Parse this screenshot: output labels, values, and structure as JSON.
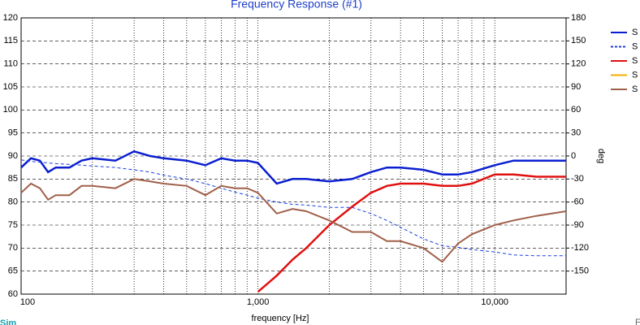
{
  "chart_data": {
    "type": "line",
    "title": "Frequency Response (#1)",
    "x_label": "frequency [Hz]",
    "y2_label": "deg",
    "annotation": "Sim",
    "corner_text": "F",
    "log_x": true,
    "grid": true,
    "legend": "right",
    "x": [
      100,
      110,
      120,
      130,
      140,
      160,
      180,
      200,
      250,
      300,
      350,
      400,
      500,
      600,
      700,
      800,
      900,
      1000,
      1200,
      1400,
      1600,
      2000,
      2500,
      3000,
      3500,
      4000,
      5000,
      6000,
      7000,
      8000,
      10000,
      12000,
      15000,
      20000
    ],
    "xlim": [
      100,
      20000
    ],
    "xticks": [
      100,
      {
        "value": 1000,
        "label": "1,000"
      },
      {
        "value": 10000,
        "label": "10,000"
      }
    ],
    "xminor": [
      200,
      300,
      400,
      500,
      600,
      700,
      800,
      900,
      2000,
      3000,
      4000,
      5000,
      6000,
      7000,
      8000,
      9000
    ],
    "ylim": [
      60,
      120
    ],
    "yticks": [
      60,
      65,
      70,
      75,
      80,
      85,
      90,
      95,
      100,
      105,
      110,
      115,
      120
    ],
    "y2lim": [
      -180,
      180
    ],
    "y2ticks": [
      -150,
      -120,
      -90,
      -60,
      -30,
      0,
      30,
      60,
      90,
      120,
      150,
      180
    ],
    "series": [
      {
        "name": "S",
        "color": "#0a1fd0",
        "width": 2.5,
        "values": [
          87.5,
          89.5,
          89,
          86.5,
          87.5,
          87.5,
          89,
          89.5,
          89,
          91,
          90,
          89.5,
          89,
          88,
          89.5,
          89,
          89,
          88.5,
          84,
          85,
          85,
          84.5,
          85,
          86.5,
          87.5,
          87.5,
          87,
          86,
          86,
          86.5,
          88,
          89,
          89,
          89
        ]
      },
      {
        "name": "S",
        "color": "#1a3ee0",
        "width": 1,
        "dashed": true,
        "axis": "y2",
        "values": [
          -5,
          -7,
          -8,
          -9,
          -10,
          -11,
          -12,
          -13,
          -15,
          -18,
          -21,
          -25,
          -30,
          -36,
          -42,
          -47,
          -51,
          -55,
          -60,
          -63,
          -64,
          -67,
          -67,
          -75,
          -84,
          -93,
          -108,
          -117,
          -119,
          -122,
          -125,
          -129,
          -130,
          -130
        ]
      },
      {
        "name": "S",
        "color": "#e01010",
        "width": 2.5,
        "values": [
          null,
          null,
          null,
          null,
          null,
          null,
          null,
          null,
          null,
          null,
          null,
          null,
          null,
          null,
          null,
          null,
          null,
          60.5,
          64,
          67.5,
          70,
          75,
          79,
          82,
          83.5,
          84,
          84,
          83.5,
          83.5,
          84,
          86,
          86,
          85.5,
          85.5
        ]
      },
      {
        "name": "S",
        "color": "#f0b000",
        "width": 2,
        "values": [
          null,
          null,
          null,
          null,
          null,
          null,
          null,
          null,
          null,
          null,
          null,
          null,
          null,
          null,
          null,
          null,
          null,
          null,
          null,
          null,
          null,
          null,
          null,
          null,
          null,
          null,
          null,
          null,
          null,
          null,
          null,
          null,
          null,
          null
        ]
      },
      {
        "name": "S",
        "color": "#a0604a",
        "width": 2,
        "values": [
          82,
          84,
          83,
          80.5,
          81.5,
          81.5,
          83.5,
          83.5,
          83,
          85,
          84.5,
          84,
          83.5,
          81.5,
          83.5,
          83,
          83,
          82,
          77.5,
          78.5,
          78,
          76,
          73.5,
          73.5,
          71.5,
          71.5,
          70,
          67,
          71,
          73,
          75,
          76,
          77,
          78
        ]
      }
    ]
  }
}
